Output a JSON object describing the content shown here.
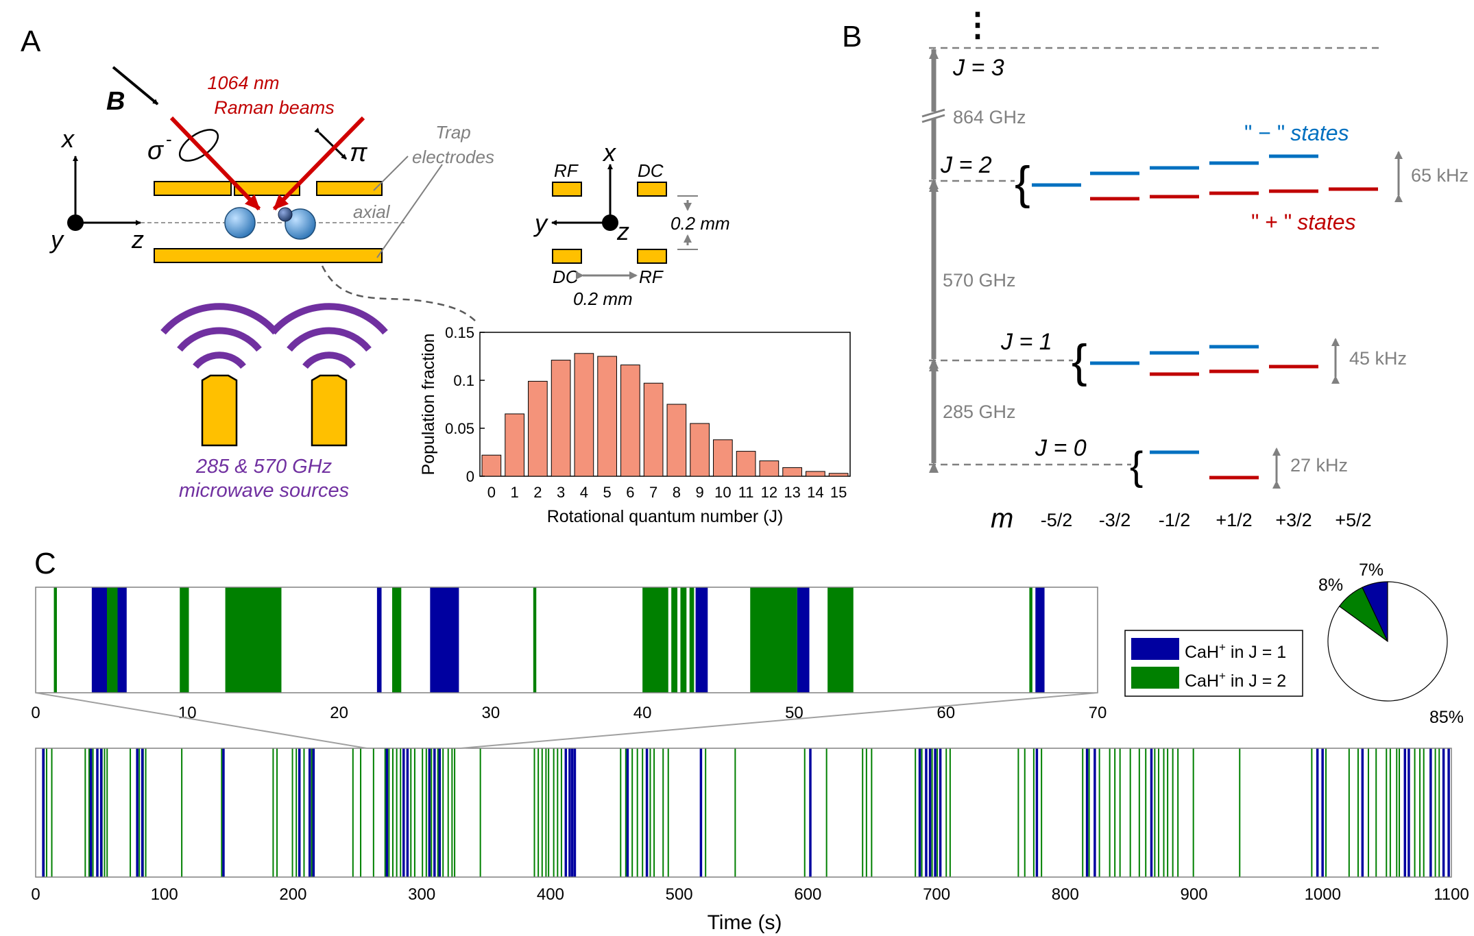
{
  "panels": {
    "a": {
      "letter": "A",
      "b_label": "B",
      "beam_label_1": "1064 nm",
      "beam_label_2": "Raman beams",
      "sigma": "σ",
      "sigma_sup": "-",
      "pi": "π",
      "trap_1": "Trap",
      "trap_2": "electrodes",
      "axial": "axial",
      "ax_x": "x",
      "ax_y": "y",
      "ax_z": "z",
      "rf": "RF",
      "dc": "DC",
      "dim": "0.2 mm",
      "microwave_1": "285 & 570 GHz",
      "microwave_2": "microwave sources",
      "colors": {
        "electrode": "#FFC000",
        "ion": "#5B9BD5",
        "beam": "#D00000",
        "microwave": "#7030A0",
        "bar": "#F4937A"
      }
    },
    "b": {
      "letter": "B",
      "dots": "⋮",
      "levels": [
        {
          "label": "J = 3"
        },
        {
          "label": "J = 2"
        },
        {
          "label": "J = 1"
        },
        {
          "label": "J = 0"
        }
      ],
      "gaps": [
        "864 GHz",
        "570 GHz",
        "285 GHz"
      ],
      "splittings": [
        "65 kHz",
        "45 kHz",
        "27 kHz"
      ],
      "minus_states": "\" − \" states",
      "minus_quote": "\" − \"",
      "minus_word": "states",
      "plus_quote": "\" + \"",
      "plus_word": "states",
      "m_label": "m",
      "m_values": [
        "-5/2",
        "-3/2",
        "-1/2",
        "+1/2",
        "+3/2",
        "+5/2"
      ],
      "colors": {
        "minus": "#0070C0",
        "plus": "#C00000",
        "gray": "#808080"
      }
    },
    "c": {
      "letter": "C",
      "legend": [
        {
          "prefix": "CaH",
          "sup": "+",
          "suffix": " in J = 1",
          "color": "#0000A0"
        },
        {
          "prefix": "CaH",
          "sup": "+",
          "suffix": " in J = 2",
          "color": "#008000"
        }
      ],
      "pie": {
        "slices": [
          {
            "label": "7%",
            "value": 7,
            "color": "#0000A0"
          },
          {
            "label": "8%",
            "value": 8,
            "color": "#008000"
          },
          {
            "label": "85%",
            "value": 85,
            "color": "#ffffff"
          }
        ]
      },
      "xlabel": "Time (s)"
    }
  },
  "chart_data": [
    {
      "type": "bar",
      "xlabel": "Rotational quantum number (J)",
      "ylabel": "Population fraction",
      "categories": [
        "0",
        "1",
        "2",
        "3",
        "4",
        "5",
        "6",
        "7",
        "8",
        "9",
        "10",
        "11",
        "12",
        "13",
        "14",
        "15"
      ],
      "values": [
        0.022,
        0.065,
        0.099,
        0.121,
        0.128,
        0.125,
        0.116,
        0.097,
        0.075,
        0.055,
        0.038,
        0.026,
        0.016,
        0.009,
        0.005,
        0.003
      ],
      "ylim": [
        0,
        0.15
      ],
      "yticks": [
        0,
        0.05,
        0.1,
        0.15
      ],
      "ytick_labels": [
        "0",
        "0.05",
        "0.1",
        "0.15"
      ]
    },
    {
      "type": "bar",
      "xlim": [
        0,
        70
      ],
      "xticks": [
        0,
        10,
        20,
        30,
        40,
        50,
        60,
        70
      ],
      "events": [
        {
          "state": 2,
          "start": 1.2,
          "end": 1.4
        },
        {
          "state": 1,
          "start": 3.7,
          "end": 4.7
        },
        {
          "state": 2,
          "start": 4.7,
          "end": 5.4
        },
        {
          "state": 1,
          "start": 5.4,
          "end": 6.0
        },
        {
          "state": 2,
          "start": 9.5,
          "end": 10.1
        },
        {
          "state": 2,
          "start": 12.5,
          "end": 16.2
        },
        {
          "state": 1,
          "start": 22.5,
          "end": 22.8
        },
        {
          "state": 2,
          "start": 23.5,
          "end": 24.1
        },
        {
          "state": 1,
          "start": 26.0,
          "end": 27.9
        },
        {
          "state": 2,
          "start": 32.8,
          "end": 33.0
        },
        {
          "state": 2,
          "start": 40.0,
          "end": 41.7
        },
        {
          "state": 2,
          "start": 41.9,
          "end": 42.3
        },
        {
          "state": 2,
          "start": 42.5,
          "end": 42.9
        },
        {
          "state": 2,
          "start": 43.1,
          "end": 43.4
        },
        {
          "state": 1,
          "start": 43.5,
          "end": 44.3
        },
        {
          "state": 2,
          "start": 47.1,
          "end": 50.2
        },
        {
          "state": 1,
          "start": 50.2,
          "end": 51.0
        },
        {
          "state": 2,
          "start": 52.2,
          "end": 53.9
        },
        {
          "state": 2,
          "start": 65.5,
          "end": 65.7
        },
        {
          "state": 1,
          "start": 65.9,
          "end": 66.5
        }
      ]
    },
    {
      "type": "bar",
      "xlim": [
        0,
        1100
      ],
      "xticks": [
        0,
        100,
        200,
        300,
        400,
        500,
        600,
        700,
        800,
        900,
        1000,
        1100
      ],
      "blue_events": [
        5,
        42,
        47,
        50,
        78,
        82,
        145,
        204,
        212,
        215,
        272,
        285,
        288,
        305,
        309,
        313,
        411,
        414,
        416,
        418,
        459,
        474,
        516,
        601,
        686,
        691,
        694,
        698,
        702,
        777,
        816,
        822,
        866,
        995,
        999,
        1030,
        1063,
        1066,
        1083,
        1093,
        1097
      ],
      "green_events": [
        6,
        8,
        12,
        38,
        41,
        44,
        51,
        53,
        55,
        73,
        80,
        83,
        85,
        113,
        144,
        184,
        187,
        199,
        202,
        208,
        214,
        246,
        252,
        262,
        271,
        274,
        277,
        280,
        283,
        291,
        294,
        300,
        303,
        307,
        312,
        316,
        320,
        323,
        325,
        345,
        387,
        390,
        393,
        396,
        398,
        402,
        405,
        408,
        454,
        458,
        463,
        467,
        471,
        477,
        480,
        487,
        491,
        520,
        543,
        597,
        614,
        642,
        645,
        649,
        683,
        688,
        696,
        700,
        707,
        710,
        763,
        768,
        775,
        781,
        813,
        818,
        826,
        834,
        838,
        842,
        850,
        857,
        862,
        869,
        872,
        876,
        879,
        883,
        887,
        899,
        935,
        991,
        1002,
        1020,
        1027,
        1035,
        1041,
        1049,
        1052,
        1057,
        1059,
        1071,
        1075,
        1078,
        1087,
        1090
      ]
    }
  ]
}
